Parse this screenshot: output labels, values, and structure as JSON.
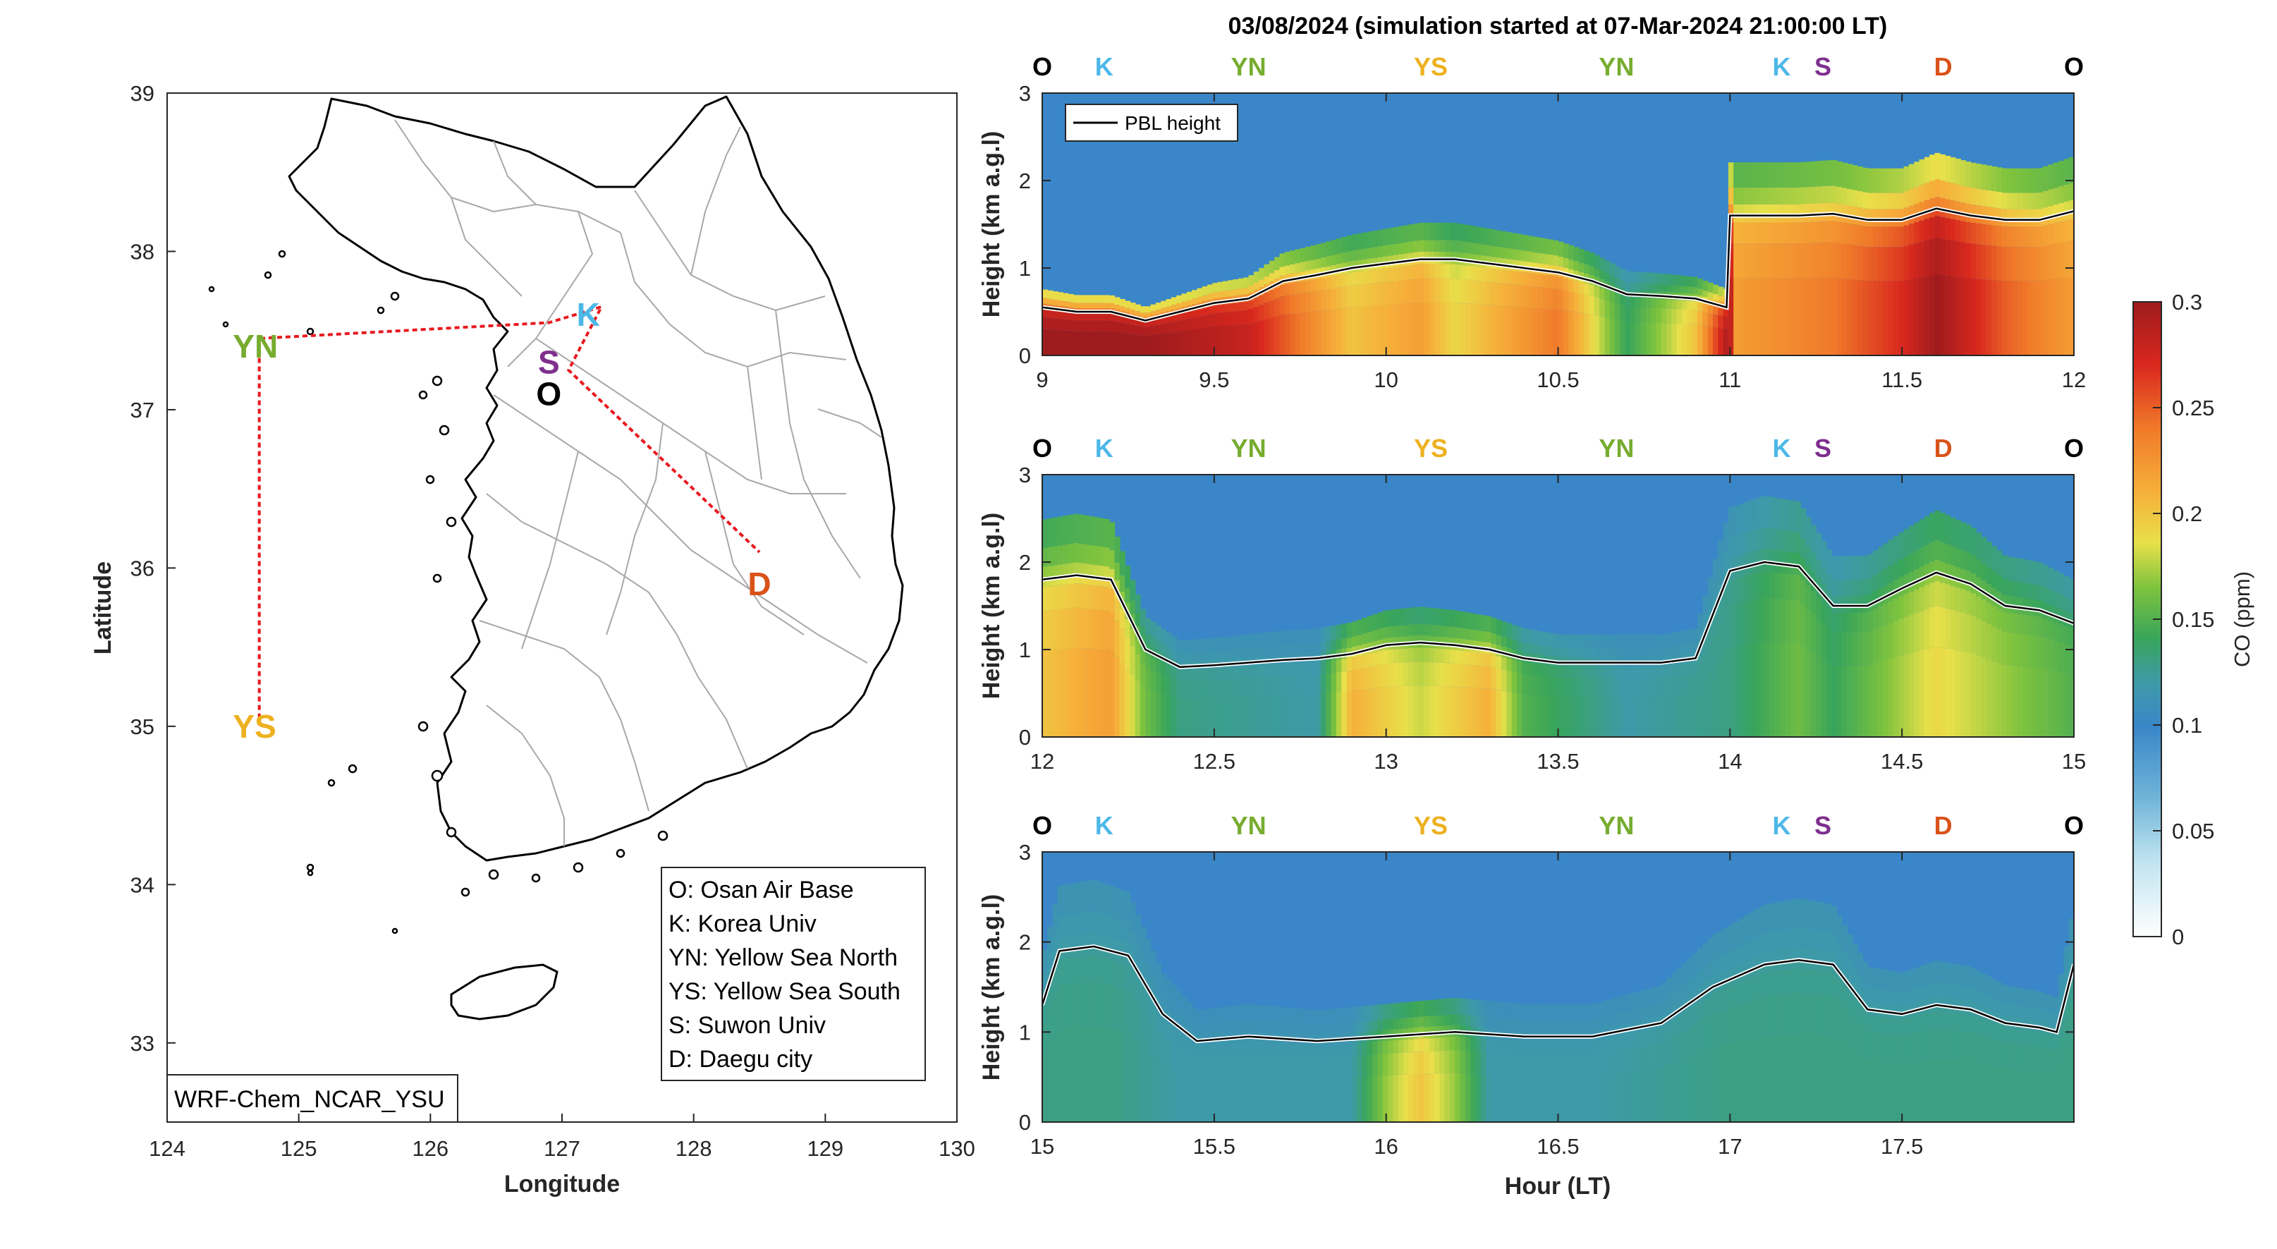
{
  "title": "03/08/2024 (simulation started at 07-Mar-2024 21:00:00 LT)",
  "colors": {
    "O": "#000000",
    "K": "#4db8e8",
    "YN": "#77ac30",
    "YS": "#edb120",
    "S": "#7e2f8e",
    "D": "#d95319",
    "route": "#e8191e"
  },
  "map": {
    "xlabel": "Longitude",
    "ylabel": "Latitude",
    "xlim": [
      124,
      130
    ],
    "ylim": [
      32.5,
      39
    ],
    "xticks": [
      "124",
      "125",
      "126",
      "127",
      "128",
      "129",
      "130"
    ],
    "yticks": [
      "33",
      "34",
      "35",
      "36",
      "37",
      "38",
      "39"
    ],
    "model_label": "WRF-Chem_NCAR_YSU",
    "sites": [
      {
        "id": "K",
        "label": "K",
        "lon": 127.2,
        "lat": 37.6
      },
      {
        "id": "S",
        "label": "S",
        "lon": 126.9,
        "lat": 37.3
      },
      {
        "id": "O",
        "label": "O",
        "lon": 126.9,
        "lat": 37.1
      },
      {
        "id": "YN",
        "label": "YN",
        "lon": 124.5,
        "lat": 37.4
      },
      {
        "id": "YS",
        "label": "YS",
        "lon": 124.5,
        "lat": 35.0
      },
      {
        "id": "D",
        "label": "D",
        "lon": 128.5,
        "lat": 35.9
      }
    ],
    "route": [
      [
        124.7,
        35.05
      ],
      [
        124.7,
        37.45
      ],
      [
        126.9,
        37.55
      ],
      [
        127.3,
        37.65
      ],
      [
        127.05,
        37.25
      ],
      [
        128.5,
        36.1
      ]
    ],
    "legend": [
      "O: Osan Air Base",
      "K: Korea Univ",
      "YN: Yellow Sea North",
      "YS: Yellow Sea South",
      "S: Suwon Univ",
      "D: Daegu city"
    ]
  },
  "colorbar": {
    "label": "CO (ppm)",
    "min": 0,
    "max": 0.3,
    "ticks": [
      "0",
      "0.05",
      "0.1",
      "0.15",
      "0.2",
      "0.25",
      "0.3"
    ]
  },
  "chart_data": [
    {
      "type": "heatmap",
      "xlabel": "",
      "ylabel": "Height (km a.g.l)",
      "xlim": [
        9,
        12
      ],
      "ylim": [
        0,
        3
      ],
      "xticks": [
        "9",
        "9.5",
        "10",
        "10.5",
        "11",
        "11.5",
        "12"
      ],
      "yticks": [
        "0",
        "1",
        "2",
        "3"
      ],
      "legend": "PBL height",
      "legend_position": "top-left",
      "site_markers": [
        {
          "label": "O",
          "x": 9.0
        },
        {
          "label": "K",
          "x": 9.18
        },
        {
          "label": "YN",
          "x": 9.6
        },
        {
          "label": "YS",
          "x": 10.13
        },
        {
          "label": "YN",
          "x": 10.67
        },
        {
          "label": "K",
          "x": 11.15
        },
        {
          "label": "S",
          "x": 11.27
        },
        {
          "label": "D",
          "x": 11.62
        },
        {
          "label": "O",
          "x": 12.0
        }
      ],
      "pbl": {
        "x": [
          9.0,
          9.1,
          9.2,
          9.3,
          9.4,
          9.5,
          9.6,
          9.7,
          9.8,
          9.9,
          10.0,
          10.1,
          10.2,
          10.3,
          10.4,
          10.5,
          10.6,
          10.7,
          10.8,
          10.9,
          10.99,
          11.0,
          11.1,
          11.2,
          11.3,
          11.4,
          11.5,
          11.6,
          11.7,
          11.8,
          11.9,
          12.0
        ],
        "y": [
          0.55,
          0.5,
          0.5,
          0.4,
          0.5,
          0.6,
          0.65,
          0.85,
          0.92,
          1.0,
          1.05,
          1.1,
          1.1,
          1.05,
          1.0,
          0.95,
          0.85,
          0.7,
          0.68,
          0.65,
          0.55,
          1.6,
          1.6,
          1.6,
          1.62,
          1.55,
          1.55,
          1.68,
          1.6,
          1.55,
          1.55,
          1.65
        ]
      },
      "co_column_max": {
        "x": [
          9.0,
          9.3,
          9.6,
          9.9,
          10.1,
          10.2,
          10.5,
          10.7,
          10.9,
          11.0,
          11.01,
          11.3,
          11.5,
          11.6,
          11.8,
          12.0
        ],
        "y": [
          0.3,
          0.3,
          0.28,
          0.2,
          0.22,
          0.19,
          0.24,
          0.14,
          0.2,
          0.3,
          0.22,
          0.24,
          0.27,
          0.3,
          0.25,
          0.22
        ]
      }
    },
    {
      "type": "heatmap",
      "xlabel": "",
      "ylabel": "Height (km a.g.l)",
      "xlim": [
        12,
        15
      ],
      "ylim": [
        0,
        3
      ],
      "xticks": [
        "12",
        "12.5",
        "13",
        "13.5",
        "14",
        "14.5",
        "15"
      ],
      "yticks": [
        "0",
        "1",
        "2",
        "3"
      ],
      "site_markers": [
        {
          "label": "O",
          "x": 12.0
        },
        {
          "label": "K",
          "x": 12.18
        },
        {
          "label": "YN",
          "x": 12.6
        },
        {
          "label": "YS",
          "x": 13.13
        },
        {
          "label": "YN",
          "x": 13.67
        },
        {
          "label": "K",
          "x": 14.15
        },
        {
          "label": "S",
          "x": 14.27
        },
        {
          "label": "D",
          "x": 14.62
        },
        {
          "label": "O",
          "x": 15.0
        }
      ],
      "pbl": {
        "x": [
          12.0,
          12.1,
          12.2,
          12.3,
          12.4,
          12.5,
          12.6,
          12.7,
          12.8,
          12.9,
          13.0,
          13.1,
          13.2,
          13.3,
          13.4,
          13.5,
          13.6,
          13.7,
          13.8,
          13.9,
          14.0,
          14.1,
          14.2,
          14.3,
          14.4,
          14.5,
          14.6,
          14.7,
          14.8,
          14.9,
          15.0
        ],
        "y": [
          1.8,
          1.85,
          1.8,
          1.0,
          0.8,
          0.82,
          0.85,
          0.88,
          0.9,
          0.95,
          1.05,
          1.08,
          1.05,
          1.0,
          0.9,
          0.85,
          0.85,
          0.85,
          0.85,
          0.9,
          1.9,
          2.0,
          1.95,
          1.5,
          1.5,
          1.7,
          1.88,
          1.75,
          1.5,
          1.45,
          1.3
        ]
      },
      "co_column_max": {
        "x": [
          12.0,
          12.2,
          12.3,
          12.4,
          12.8,
          12.9,
          13.1,
          13.3,
          13.4,
          13.7,
          14.0,
          14.2,
          14.3,
          14.6,
          14.8,
          15.0
        ],
        "y": [
          0.2,
          0.22,
          0.16,
          0.13,
          0.12,
          0.21,
          0.18,
          0.21,
          0.15,
          0.12,
          0.13,
          0.16,
          0.14,
          0.19,
          0.17,
          0.15
        ]
      }
    },
    {
      "type": "heatmap",
      "xlabel": "Hour (LT)",
      "ylabel": "Height (km a.g.l)",
      "xlim": [
        15,
        18
      ],
      "ylim": [
        0,
        3
      ],
      "xticks": [
        "15",
        "15.5",
        "16",
        "16.5",
        "17",
        "17.5"
      ],
      "yticks": [
        "0",
        "1",
        "2",
        "3"
      ],
      "site_markers": [
        {
          "label": "O",
          "x": 15.0
        },
        {
          "label": "K",
          "x": 15.18
        },
        {
          "label": "YN",
          "x": 15.6
        },
        {
          "label": "YS",
          "x": 16.13
        },
        {
          "label": "YN",
          "x": 16.67
        },
        {
          "label": "K",
          "x": 17.15
        },
        {
          "label": "S",
          "x": 17.27
        },
        {
          "label": "D",
          "x": 17.62
        },
        {
          "label": "O",
          "x": 18.0
        }
      ],
      "pbl": {
        "x": [
          15.0,
          15.05,
          15.15,
          15.25,
          15.35,
          15.45,
          15.6,
          15.8,
          16.0,
          16.2,
          16.4,
          16.6,
          16.8,
          16.95,
          17.1,
          17.2,
          17.3,
          17.4,
          17.5,
          17.6,
          17.7,
          17.8,
          17.9,
          17.95,
          18.0
        ],
        "y": [
          1.3,
          1.9,
          1.95,
          1.85,
          1.2,
          0.9,
          0.95,
          0.9,
          0.95,
          1.0,
          0.95,
          0.95,
          1.1,
          1.5,
          1.75,
          1.8,
          1.75,
          1.25,
          1.2,
          1.3,
          1.25,
          1.1,
          1.05,
          1.0,
          1.75
        ]
      },
      "co_column_max": {
        "x": [
          15.0,
          15.2,
          15.4,
          15.6,
          15.9,
          16.0,
          16.1,
          16.2,
          16.3,
          16.6,
          17.0,
          17.2,
          17.4,
          17.6,
          17.8,
          18.0
        ],
        "y": [
          0.13,
          0.13,
          0.12,
          0.12,
          0.12,
          0.17,
          0.2,
          0.17,
          0.12,
          0.12,
          0.13,
          0.13,
          0.13,
          0.13,
          0.13,
          0.13
        ]
      }
    }
  ]
}
